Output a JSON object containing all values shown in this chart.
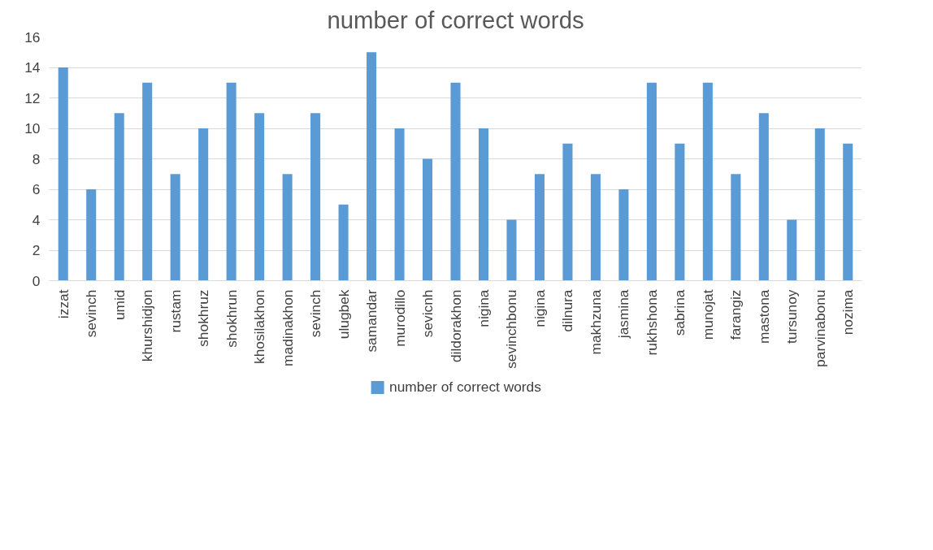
{
  "chart_data": {
    "type": "bar",
    "title": "number of correct words",
    "categories": [
      "izzat",
      "sevinch",
      "umid",
      "khurshidjon",
      "rustam",
      "shokhruz",
      "shokhrun",
      "khosilakhon",
      "madinakhon",
      "sevinch",
      "ulugbek",
      "samandar",
      "murodillo",
      "sevicnh",
      "dildorakhon",
      "nigina",
      "sevinchbonu",
      "nigina",
      "dilnura",
      "makhzuna",
      "jasmina",
      "rukhshona",
      "sabrina",
      "munojat",
      "farangiz",
      "mastona",
      "tursunoy",
      "parvinabonu",
      "nozima"
    ],
    "series": [
      {
        "name": "number of correct words",
        "color": "#5b9bd5",
        "values": [
          14,
          6,
          11,
          13,
          7,
          10,
          13,
          11,
          7,
          11,
          5,
          15,
          10,
          8,
          13,
          10,
          4,
          7,
          9,
          7,
          6,
          13,
          9,
          13,
          7,
          11,
          4,
          10,
          9
        ]
      }
    ],
    "ylim": [
      0,
      16
    ],
    "yticks": [
      0,
      2,
      4,
      6,
      8,
      10,
      12,
      14,
      16
    ],
    "grid": "y",
    "legend": "bottom"
  }
}
